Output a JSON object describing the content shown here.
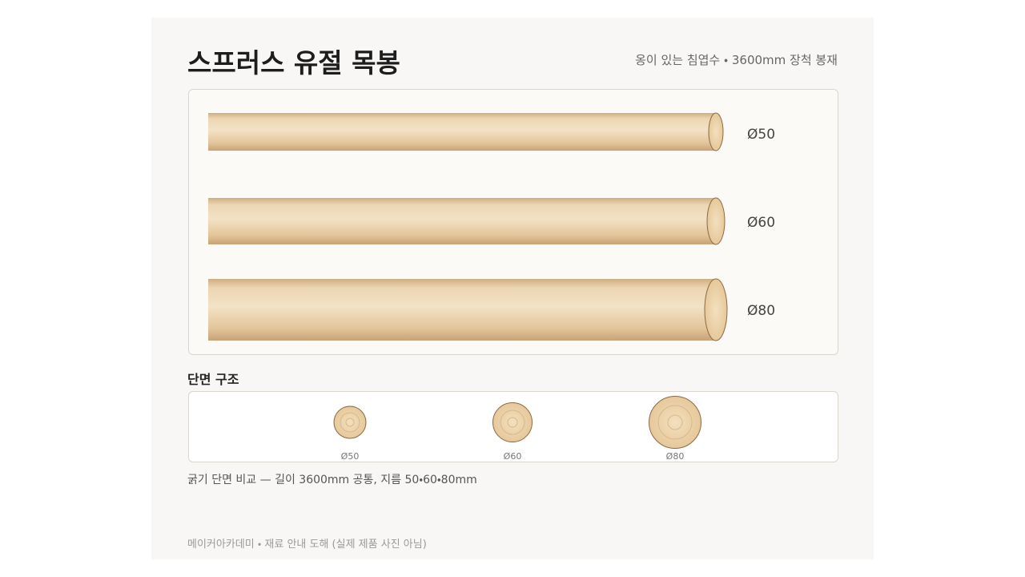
{
  "header": {
    "title": "스프러스 유절 목봉",
    "subtitle": "옹이 있는 침엽수 ・ 3600mm 장척 봉재"
  },
  "rods": [
    {
      "label": "Ø50"
    },
    {
      "label": "Ø60"
    },
    {
      "label": "Ø80"
    }
  ],
  "section": {
    "title": "단면 구조",
    "labels": [
      "Ø50",
      "Ø60",
      "Ø80"
    ]
  },
  "caption": "굵기 단면 비교 — 길이 3600mm 공통, 지름 50・60・80mm",
  "footer": "메이커아카데미 ・ 재료 안내 도해 (실제 제품 사진 아님)"
}
